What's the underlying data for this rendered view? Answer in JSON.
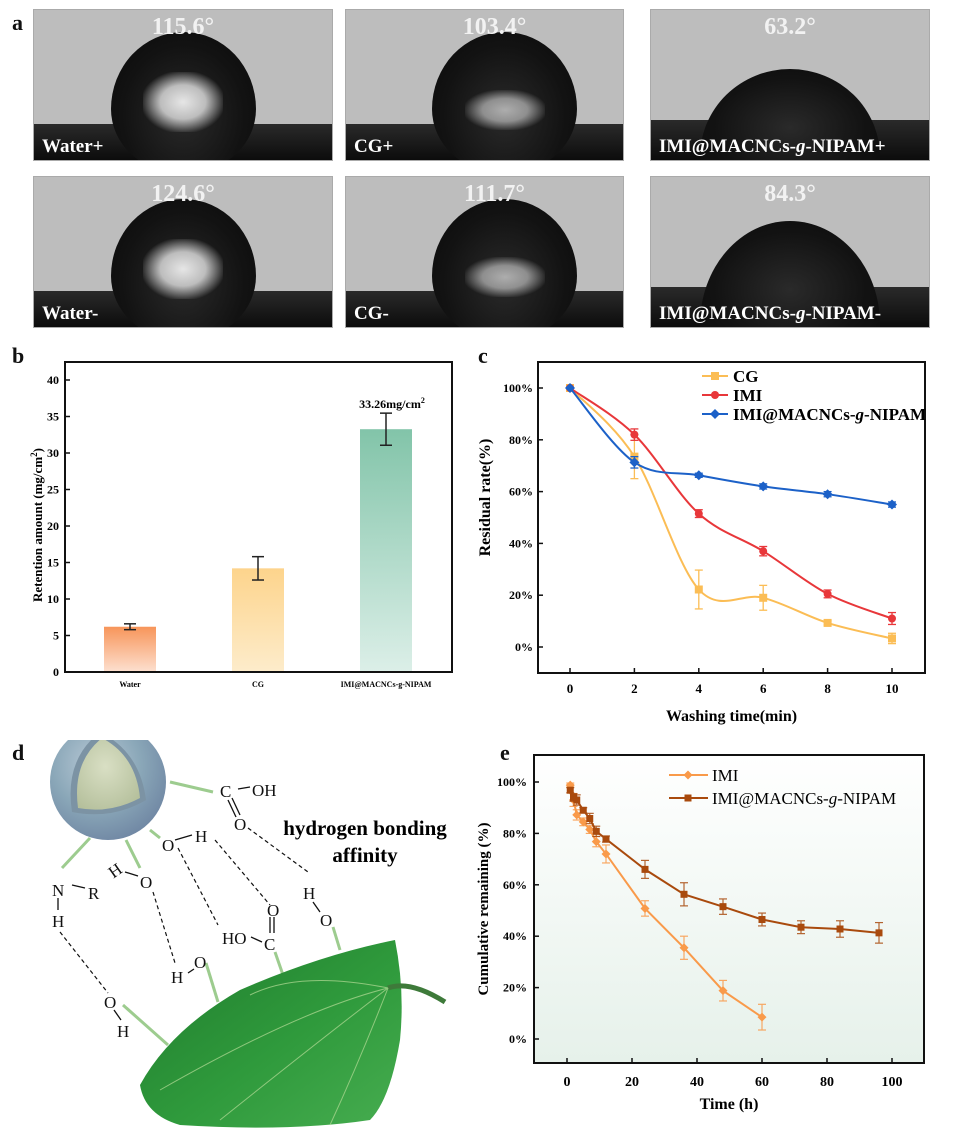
{
  "panels": {
    "a": {
      "letter": "a",
      "photos": [
        {
          "label": "Water+",
          "angle": "115.6°",
          "contact_angle_deg": 115.6
        },
        {
          "label": "CG+",
          "angle": "103.4°",
          "contact_angle_deg": 103.4
        },
        {
          "label": "IMI@MACNCs-g-NIPAM+",
          "angle": "63.2°",
          "contact_angle_deg": 63.2
        },
        {
          "label": "Water-",
          "angle": "124.6°",
          "contact_angle_deg": 124.6
        },
        {
          "label": "CG-",
          "angle": "111.7°",
          "contact_angle_deg": 111.7
        },
        {
          "label": "IMI@MACNCs-g-NIPAM-",
          "angle": "84.3°",
          "contact_angle_deg": 84.3
        }
      ]
    },
    "b": {
      "letter": "b"
    },
    "c": {
      "letter": "c"
    },
    "d": {
      "letter": "d",
      "caption_line1": "hydrogen bonding",
      "caption_line2": "affinity",
      "groups": {
        "cooh_top": "C",
        "oh_top": "OH",
        "o_top": "O",
        "n": "N",
        "r": "R",
        "h_n": "H",
        "h_oh": "H",
        "o_oh": "O",
        "o_mid": "O",
        "h_mid": "H",
        "o_carb": "O",
        "c_carb": "C",
        "ho_carb": "HO",
        "h_leaf1": "H",
        "o_leaf1": "O",
        "h_right": "H",
        "o_right": "O",
        "o_bottom": "O",
        "h_bottom": "H"
      }
    },
    "e": {
      "letter": "e"
    }
  },
  "chart_data": [
    {
      "id": "b",
      "type": "bar",
      "title": "",
      "xlabel": "",
      "ylabel": "Retention amount (mg/cm²)",
      "ylabel_main": "Retention amount (mg/cm",
      "ylabel_sup": "2",
      "ylabel_end": ")",
      "categories": [
        "Water",
        "CG",
        "IMI@MACNCs-g-NIPAM"
      ],
      "values": [
        6.2,
        14.2,
        33.26
      ],
      "errors": [
        0.4,
        1.6,
        2.2
      ],
      "colors": [
        [
          "#f7955a",
          "#fde0d0"
        ],
        [
          "#fdd48c",
          "#fdeccb"
        ],
        [
          "#82c4a9",
          "#dcefe8"
        ]
      ],
      "ylim": [
        0,
        42
      ],
      "yticks": [
        0,
        5,
        10,
        15,
        20,
        25,
        30,
        35,
        40
      ],
      "annotation": {
        "text": "33.26mg/cm",
        "sup": "2",
        "category": "IMI@MACNCs-g-NIPAM"
      },
      "grid": false
    },
    {
      "id": "c",
      "type": "line",
      "title": "",
      "xlabel": "Washing time(min)",
      "ylabel": "Residual rate(%)",
      "x": [
        0,
        2,
        4,
        6,
        8,
        10
      ],
      "xlim": [
        -1,
        11
      ],
      "ylim": [
        -10,
        110
      ],
      "xticks": [
        0,
        2,
        4,
        6,
        8,
        10
      ],
      "yticks": [
        0,
        20,
        40,
        60,
        80,
        100
      ],
      "ytick_labels": [
        "0%",
        "20%",
        "40%",
        "60%",
        "80%",
        "100%"
      ],
      "legend_position": "top-right",
      "series": [
        {
          "name": "CG",
          "color": "#fbbd55",
          "marker": "square",
          "values": [
            100,
            73.5,
            22.2,
            19,
            9.3,
            3.3
          ],
          "errors": [
            0,
            8.5,
            7.5,
            4.8,
            0.8,
            2
          ]
        },
        {
          "name": "IMI",
          "color": "#e8373a",
          "marker": "circle",
          "values": [
            100,
            82,
            51.5,
            37,
            20.5,
            11
          ],
          "errors": [
            0,
            2.2,
            1.5,
            1.8,
            1.5,
            2.3
          ]
        },
        {
          "name": "IMI@MACNCs-g-NIPAM",
          "color": "#1c61c8",
          "marker": "diamond",
          "values": [
            100,
            71.3,
            66.3,
            62,
            59,
            55
          ],
          "errors": [
            0,
            2.2,
            0.8,
            1,
            1,
            1
          ]
        }
      ],
      "grid": false
    },
    {
      "id": "e",
      "type": "line",
      "title": "",
      "xlabel": "Time (h)",
      "ylabel": "Cumulative remaining (%)",
      "xlim": [
        -10,
        110
      ],
      "ylim": [
        -10,
        110
      ],
      "xticks": [
        0,
        20,
        40,
        60,
        80,
        100
      ],
      "yticks": [
        0,
        20,
        40,
        60,
        80,
        100
      ],
      "ytick_labels": [
        "0%",
        "20%",
        "40%",
        "60%",
        "80%",
        "100%"
      ],
      "legend_position": "top-right",
      "series": [
        {
          "name": "IMI",
          "color": "#f99a4a",
          "marker": "diamond",
          "x": [
            1,
            2,
            3,
            5,
            7,
            9,
            12,
            24,
            36,
            48,
            60
          ],
          "values": [
            98.8,
            93,
            87.2,
            84.5,
            81.5,
            76.8,
            72,
            50.8,
            35.5,
            18.8,
            8.5
          ],
          "errors": [
            0.8,
            2.5,
            2,
            1.5,
            1.5,
            2,
            3.5,
            3,
            4.5,
            4,
            5
          ]
        },
        {
          "name": "IMI@MACNCs-g-NIPAM",
          "color": "#a94a0d",
          "marker": "square",
          "x": [
            1,
            2,
            3,
            5,
            7,
            9,
            12,
            24,
            36,
            48,
            60,
            72,
            84,
            96
          ],
          "values": [
            96.8,
            94,
            93,
            89,
            85.8,
            80.8,
            77.8,
            66,
            56.3,
            51.5,
            46.5,
            43.5,
            42.8,
            41.3
          ],
          "errors": [
            1,
            1.5,
            2,
            1,
            2,
            2,
            1.2,
            3.5,
            4.5,
            3,
            2.5,
            2.5,
            3.2,
            4
          ]
        }
      ],
      "background_gradient": [
        "#ffffff",
        "#e6f1ea"
      ],
      "grid": false
    }
  ]
}
